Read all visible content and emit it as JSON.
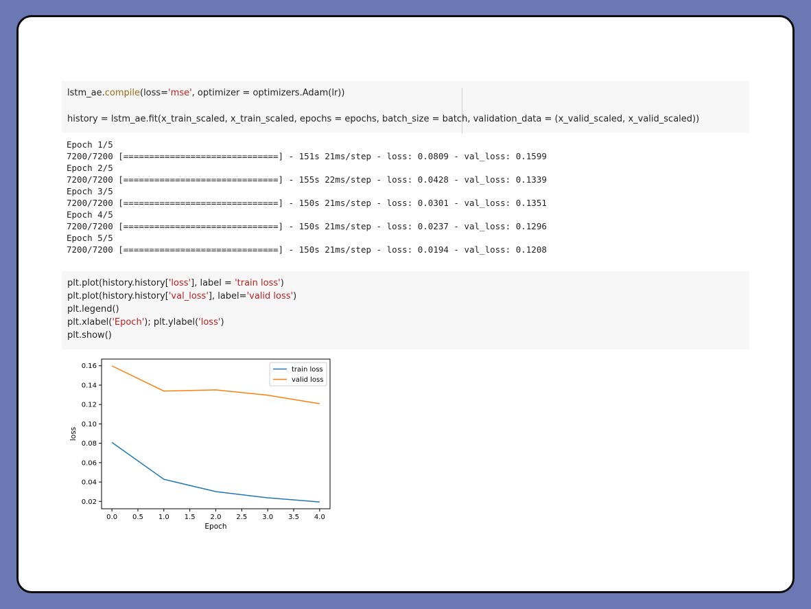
{
  "cell1": {
    "line1_parts": [
      "lstm_ae.",
      "compile",
      "(loss=",
      "'mse'",
      ", optimizer = optimizers.Adam(lr))"
    ],
    "line2": "history = lstm_ae.fit(x_train_scaled, x_train_scaled, epochs = epochs, batch_size = batch, validation_data = (x_valid_scaled, x_valid_scaled))"
  },
  "output": {
    "lines": [
      "Epoch 1/5",
      "7200/7200 [==============================] - 151s 21ms/step - loss: 0.0809 - val_loss: 0.1599",
      "Epoch 2/5",
      "7200/7200 [==============================] - 155s 22ms/step - loss: 0.0428 - val_loss: 0.1339",
      "Epoch 3/5",
      "7200/7200 [==============================] - 150s 21ms/step - loss: 0.0301 - val_loss: 0.1351",
      "Epoch 4/5",
      "7200/7200 [==============================] - 150s 21ms/step - loss: 0.0237 - val_loss: 0.1296",
      "Epoch 5/5",
      "7200/7200 [==============================] - 150s 21ms/step - loss: 0.0194 - val_loss: 0.1208"
    ]
  },
  "cell2": {
    "line1_parts": [
      "plt.plot(history.history[",
      "'loss'",
      "], label = ",
      "'train loss'",
      ")"
    ],
    "line2_parts": [
      "plt.plot(history.history[",
      "'val_loss'",
      "], label=",
      "'valid loss'",
      ")"
    ],
    "line3": "plt.legend()",
    "line4_parts": [
      "plt.xlabel(",
      "'Epoch'",
      "); plt.ylabel(",
      "'loss'",
      ")"
    ],
    "line5": "plt.show()"
  },
  "colors": {
    "background": "#6a78b4",
    "train": "#1f77b4",
    "valid": "#ff7f0e",
    "string": "#ba2121"
  },
  "chart_data": {
    "type": "line",
    "x": [
      0,
      1,
      2,
      3,
      4
    ],
    "series": [
      {
        "name": "train loss",
        "values": [
          0.0809,
          0.0428,
          0.0301,
          0.0237,
          0.0194
        ]
      },
      {
        "name": "valid loss",
        "values": [
          0.1599,
          0.1339,
          0.1351,
          0.1296,
          0.1208
        ]
      }
    ],
    "xlabel": "Epoch",
    "ylabel": "loss",
    "xticks": [
      "0.0",
      "0.5",
      "1.0",
      "1.5",
      "2.0",
      "2.5",
      "3.0",
      "3.5",
      "4.0"
    ],
    "yticks": [
      "0.02",
      "0.04",
      "0.06",
      "0.08",
      "0.10",
      "0.12",
      "0.14",
      "0.16"
    ],
    "xlim": [
      -0.2,
      4.2
    ],
    "ylim": [
      0.0124,
      0.1669
    ],
    "grid": false,
    "legend": "top-right"
  }
}
